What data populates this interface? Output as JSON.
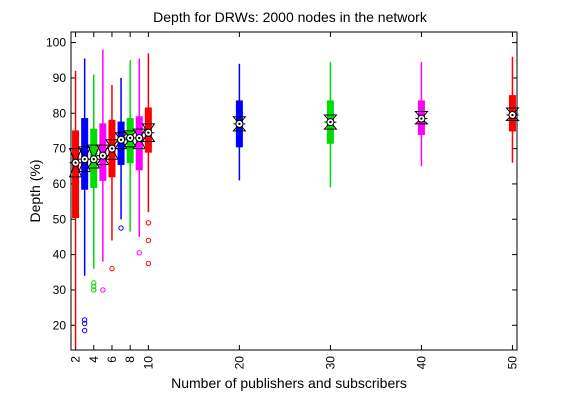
{
  "chart_data": {
    "type": "boxplot",
    "title": "Depth for DRWs: 2000 nodes in the network",
    "xlabel": "Number of publishers and subscribers",
    "ylabel": "Depth (%)",
    "xlim": [
      1.5,
      50.5
    ],
    "ylim": [
      13,
      103
    ],
    "yticks": [
      20,
      30,
      40,
      50,
      60,
      70,
      80,
      90,
      100
    ],
    "xticks": [
      2,
      4,
      6,
      8,
      10,
      20,
      30,
      40,
      50
    ],
    "categories": [
      2,
      3,
      4,
      5,
      6,
      7,
      8,
      9,
      10,
      20,
      30,
      40,
      50
    ],
    "series": [
      {
        "x": 2,
        "color": "#ff0000",
        "whisker_low": 13.5,
        "q1": 50.5,
        "median": 66,
        "q3": 75,
        "whisker_high": 92,
        "mean": 66,
        "ci_low": 62,
        "ci_high": 70,
        "outliers": []
      },
      {
        "x": 3,
        "color": "#0000ff",
        "whisker_low": 34,
        "q1": 58.5,
        "median": 67,
        "q3": 78.5,
        "whisker_high": 95.5,
        "mean": 67,
        "ci_low": 63.5,
        "ci_high": 70.5,
        "outliers": [
          18.5,
          20.5,
          21.5
        ]
      },
      {
        "x": 4,
        "color": "#00dd00",
        "whisker_low": 36,
        "q1": 59,
        "median": 67,
        "q3": 75.5,
        "whisker_high": 91,
        "mean": 67,
        "ci_low": 64.5,
        "ci_high": 71,
        "outliers": [
          30,
          31,
          32
        ]
      },
      {
        "x": 5,
        "color": "#ff00ff",
        "whisker_low": 38,
        "q1": 61,
        "median": 68,
        "q3": 77,
        "whisker_high": 98,
        "mean": 68,
        "ci_low": 65.5,
        "ci_high": 71,
        "outliers": [
          30
        ]
      },
      {
        "x": 6,
        "color": "#ff0000",
        "whisker_low": 44,
        "q1": 62,
        "median": 70,
        "q3": 78,
        "whisker_high": 88,
        "mean": 70,
        "ci_low": 67,
        "ci_high": 72.5,
        "outliers": [
          36
        ]
      },
      {
        "x": 7,
        "color": "#0000ff",
        "whisker_low": 50,
        "q1": 65.5,
        "median": 72.5,
        "q3": 77.5,
        "whisker_high": 90,
        "mean": 72.5,
        "ci_low": 70,
        "ci_high": 74.5,
        "outliers": [
          47.5
        ]
      },
      {
        "x": 8,
        "color": "#00dd00",
        "whisker_low": 46.5,
        "q1": 66,
        "median": 73,
        "q3": 78.5,
        "whisker_high": 95,
        "mean": 73,
        "ci_low": 70.5,
        "ci_high": 75,
        "outliers": []
      },
      {
        "x": 9,
        "color": "#ff00ff",
        "whisker_low": 45,
        "q1": 64,
        "median": 73,
        "q3": 79,
        "whisker_high": 95.5,
        "mean": 73,
        "ci_low": 70,
        "ci_high": 75.5,
        "outliers": [
          40.5
        ]
      },
      {
        "x": 10,
        "color": "#ff0000",
        "whisker_low": 52,
        "q1": 69,
        "median": 74.5,
        "q3": 81.5,
        "whisker_high": 97,
        "mean": 74.5,
        "ci_low": 72,
        "ci_high": 77,
        "outliers": [
          37.5,
          44,
          49
        ]
      },
      {
        "x": 20,
        "color": "#0000ff",
        "whisker_low": 61,
        "q1": 70.5,
        "median": 77,
        "q3": 83.5,
        "whisker_high": 94,
        "mean": 77,
        "ci_low": 75,
        "ci_high": 79,
        "outliers": []
      },
      {
        "x": 30,
        "color": "#00dd00",
        "whisker_low": 59,
        "q1": 71.5,
        "median": 77.5,
        "q3": 83.5,
        "whisker_high": 94.5,
        "mean": 77.5,
        "ci_low": 75.5,
        "ci_high": 79.5,
        "outliers": []
      },
      {
        "x": 40,
        "color": "#ff00ff",
        "whisker_low": 65,
        "q1": 74,
        "median": 78.5,
        "q3": 83.5,
        "whisker_high": 94.5,
        "mean": 78.5,
        "ci_low": 77,
        "ci_high": 80.5,
        "outliers": []
      },
      {
        "x": 50,
        "color": "#ff0000",
        "whisker_low": 66,
        "q1": 75,
        "median": 79.5,
        "q3": 85,
        "whisker_high": 96,
        "mean": 79.5,
        "ci_low": 78,
        "ci_high": 81.5,
        "outliers": []
      }
    ],
    "grid": false,
    "legend": "none"
  }
}
